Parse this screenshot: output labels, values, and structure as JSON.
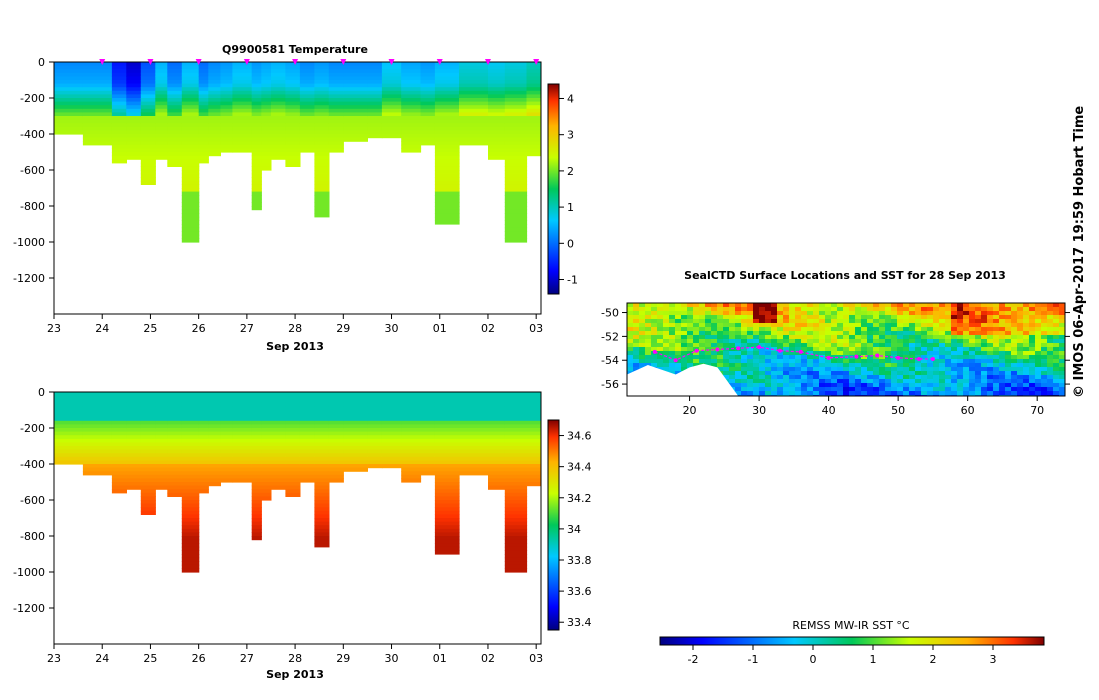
{
  "chart_data": [
    {
      "id": "temperature",
      "type": "heatmap",
      "title": "Q9900581  Temperature",
      "xlabel": "Sep 2013",
      "x_ticks": [
        "23",
        "24",
        "25",
        "26",
        "27",
        "28",
        "29",
        "30",
        "01",
        "02",
        "03"
      ],
      "xlim": [
        23,
        33.1
      ],
      "ylim": [
        -1400,
        0
      ],
      "y_ticks": [
        0,
        -200,
        -400,
        -600,
        -800,
        -1000,
        -1200
      ],
      "colorbar": {
        "ticks": [
          4,
          3,
          2,
          1,
          0,
          -1
        ],
        "range": [
          -1.4,
          4.4
        ]
      },
      "surface_marker_days": [
        24,
        25,
        26,
        27,
        28,
        29,
        30,
        31,
        32,
        33
      ],
      "profiles": [
        {
          "day": 23.0,
          "w": 0.6,
          "depth": 400,
          "surf": 0.2
        },
        {
          "day": 23.6,
          "w": 0.6,
          "depth": 460,
          "surf": 0.2
        },
        {
          "day": 24.2,
          "w": 0.3,
          "depth": 550,
          "surf": -0.6
        },
        {
          "day": 24.5,
          "w": 0.3,
          "depth": 530,
          "surf": -1.0
        },
        {
          "day": 24.8,
          "w": 0.3,
          "depth": 670,
          "surf": -0.2
        },
        {
          "day": 25.1,
          "w": 0.25,
          "depth": 540,
          "surf": 0.5
        },
        {
          "day": 25.35,
          "w": 0.3,
          "depth": 570,
          "surf": 0.0
        },
        {
          "day": 25.65,
          "w": 0.35,
          "depth": 1000,
          "surf": 0.5
        },
        {
          "day": 26.0,
          "w": 0.2,
          "depth": 550,
          "surf": 0.0
        },
        {
          "day": 26.2,
          "w": 0.25,
          "depth": 510,
          "surf": 0.2
        },
        {
          "day": 26.45,
          "w": 0.25,
          "depth": 490,
          "surf": 0.3
        },
        {
          "day": 26.7,
          "w": 0.4,
          "depth": 490,
          "surf": 0.5
        },
        {
          "day": 27.1,
          "w": 0.2,
          "depth": 820,
          "surf": 0.3
        },
        {
          "day": 27.3,
          "w": 0.2,
          "depth": 590,
          "surf": 0.4
        },
        {
          "day": 27.5,
          "w": 0.3,
          "depth": 530,
          "surf": 0.5
        },
        {
          "day": 27.8,
          "w": 0.3,
          "depth": 570,
          "surf": 0.4
        },
        {
          "day": 28.1,
          "w": 0.3,
          "depth": 500,
          "surf": 0.2
        },
        {
          "day": 28.4,
          "w": 0.3,
          "depth": 860,
          "surf": 0.3
        },
        {
          "day": 28.7,
          "w": 0.3,
          "depth": 490,
          "surf": 0.2
        },
        {
          "day": 29.0,
          "w": 0.5,
          "depth": 440,
          "surf": 0.2
        },
        {
          "day": 29.5,
          "w": 0.3,
          "depth": 410,
          "surf": 0.2
        },
        {
          "day": 29.8,
          "w": 0.4,
          "depth": 410,
          "surf": 0.6
        },
        {
          "day": 30.2,
          "w": 0.4,
          "depth": 500,
          "surf": 0.4
        },
        {
          "day": 30.6,
          "w": 0.3,
          "depth": 460,
          "surf": 0.3
        },
        {
          "day": 30.9,
          "w": 0.5,
          "depth": 890,
          "surf": 0.5
        },
        {
          "day": 31.4,
          "w": 0.6,
          "depth": 450,
          "surf": 0.8
        },
        {
          "day": 32.0,
          "w": 0.35,
          "depth": 540,
          "surf": 0.7
        },
        {
          "day": 32.35,
          "w": 0.45,
          "depth": 1000,
          "surf": 0.8
        },
        {
          "day": 32.8,
          "w": 0.3,
          "depth": 510,
          "surf": 1.0
        }
      ]
    },
    {
      "id": "salinity",
      "type": "heatmap",
      "title": "",
      "xlabel": "Sep 2013",
      "x_ticks": [
        "23",
        "24",
        "25",
        "26",
        "27",
        "28",
        "29",
        "30",
        "01",
        "02",
        "03"
      ],
      "xlim": [
        23,
        33.1
      ],
      "ylim": [
        -1400,
        0
      ],
      "y_ticks": [
        0,
        -200,
        -400,
        -600,
        -800,
        -1000,
        -1200
      ],
      "colorbar": {
        "ticks": [
          34.6,
          34.4,
          34.2,
          34,
          33.8,
          33.6,
          33.4
        ],
        "tick_labels": [
          "34.6",
          "34.4",
          "34.2",
          "34",
          "33.8",
          "33.6",
          "33.4"
        ],
        "range": [
          33.35,
          34.7
        ]
      }
    },
    {
      "id": "sst-map",
      "type": "heatmap",
      "title": "SealCTD Surface Locations and SST for 28 Sep 2013",
      "x_ticks": [
        20,
        30,
        40,
        50,
        60,
        70
      ],
      "xlim": [
        11,
        74
      ],
      "y_ticks": [
        -50,
        -52,
        -54,
        -56
      ],
      "y_tick_labels": [
        "-50",
        "-52",
        "-54",
        "-56"
      ],
      "ylim": [
        -57,
        -49.2
      ],
      "track": [
        [
          15,
          -53.3
        ],
        [
          18,
          -54.0
        ],
        [
          21,
          -53.2
        ],
        [
          24,
          -53.1
        ],
        [
          27,
          -53.0
        ],
        [
          30,
          -52.9
        ],
        [
          33,
          -53.2
        ],
        [
          36,
          -53.3
        ],
        [
          40,
          -53.8
        ],
        [
          44,
          -53.7
        ],
        [
          47,
          -53.6
        ],
        [
          50,
          -53.8
        ],
        [
          53,
          -53.9
        ],
        [
          55,
          -53.9
        ]
      ],
      "colorbar_label": "REMSS MW-IR SST °C",
      "colorbar_ticks": [
        "-2",
        "-1",
        "0",
        "1",
        "2",
        "3"
      ],
      "colorbar_tick_values": [
        -2,
        -1,
        0,
        1,
        2,
        3
      ],
      "colorbar_range": [
        -2.55,
        3.85
      ]
    }
  ],
  "side_text": "© IMOS 06-Apr-2017 19:59 Hobart Time"
}
